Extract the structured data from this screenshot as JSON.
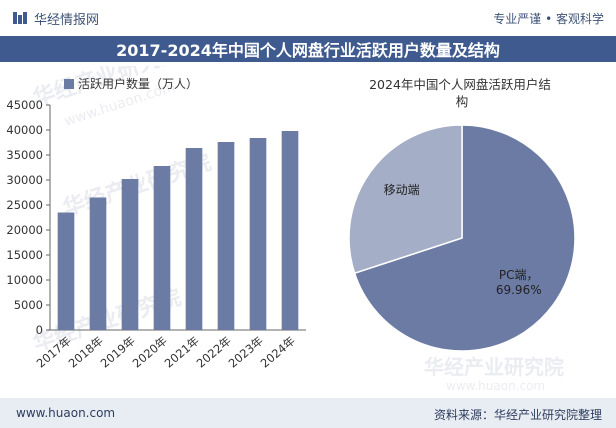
{
  "header": {
    "brand": "华经情报网",
    "slogan": "专业严谨 • 客观科学"
  },
  "title": "2017-2024年中国个人网盘行业活跃用户数量及结构",
  "footer": {
    "website": "www.huaon.com",
    "source": "资料来源：华经产业研究院整理"
  },
  "watermark": {
    "name": "华经产业研究院",
    "site": "www.huaon.com"
  },
  "colors": {
    "bar": "#6b7ba3",
    "pie_pc": "#6b7ba3",
    "pie_mobile": "#a4aec6",
    "title_bg": "#3f5a8e",
    "footer_bg": "#e8ecf3"
  },
  "chart_data": [
    {
      "type": "bar",
      "legend": "活跃用户数量（万人）",
      "legend_position": "top",
      "categories": [
        "2017年",
        "2018年",
        "2019年",
        "2020年",
        "2021年",
        "2022年",
        "2023年",
        "2024年"
      ],
      "series": [
        {
          "name": "活跃用户数量（万人）",
          "values": [
            23500,
            26500,
            30200,
            32800,
            36400,
            37600,
            38400,
            39800
          ]
        }
      ],
      "ylim": [
        0,
        45000
      ],
      "yticks": [
        "0",
        "5000",
        "10000",
        "15000",
        "20000",
        "25000",
        "30000",
        "35000",
        "40000",
        "45000"
      ],
      "grid": false
    },
    {
      "type": "pie",
      "title": "2024年中国个人网盘活跃用户结构",
      "slices": [
        {
          "label": "PC端",
          "value": 69.96,
          "value_label": "69.96%"
        },
        {
          "label": "移动端",
          "value": 30.04
        }
      ]
    }
  ]
}
